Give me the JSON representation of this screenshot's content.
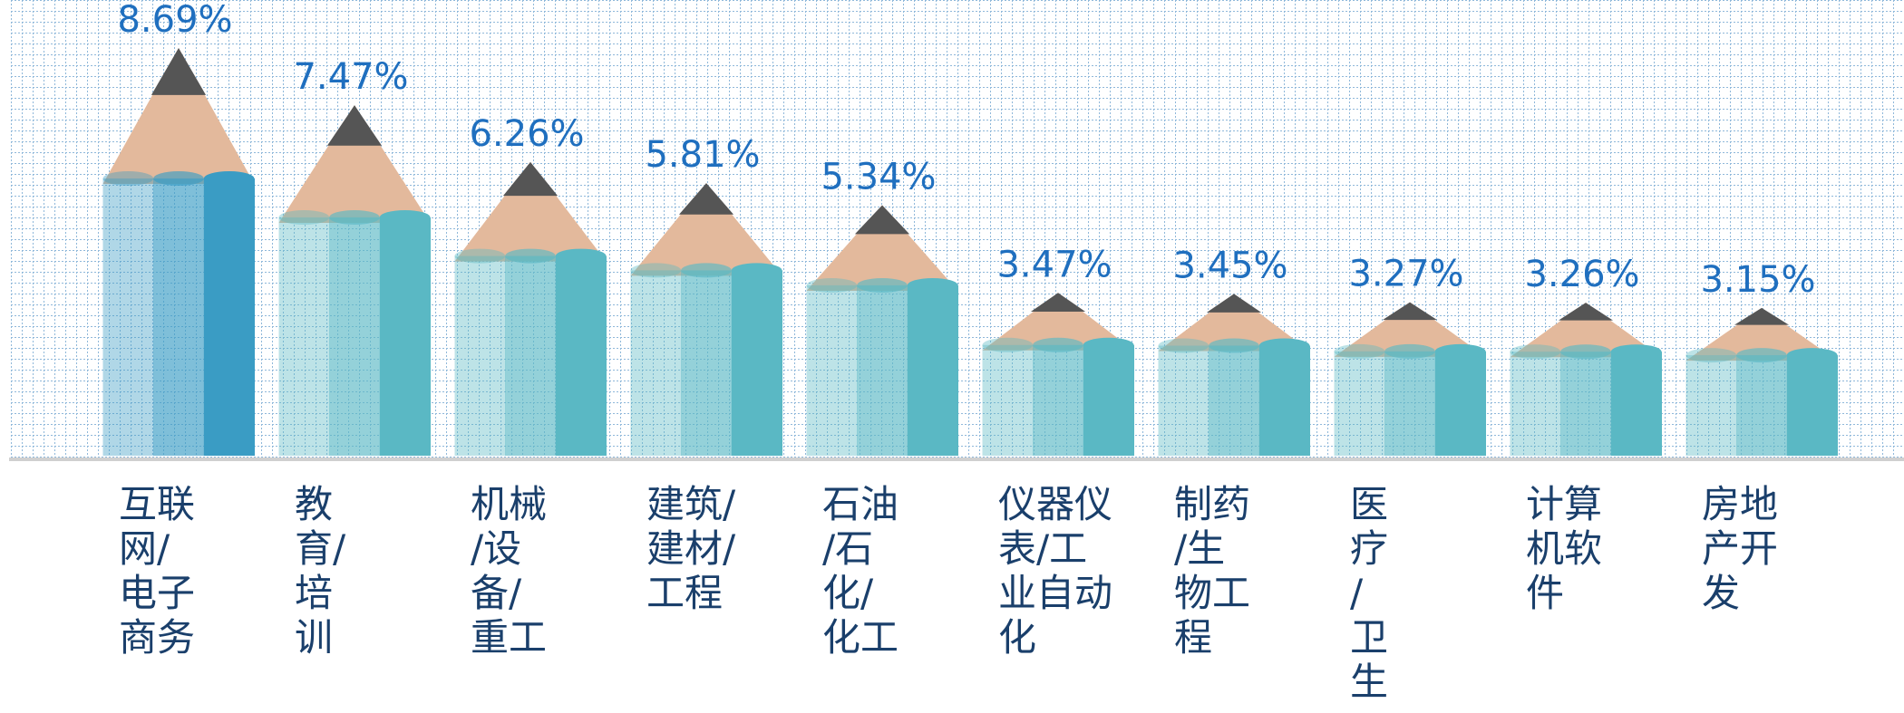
{
  "chart_data": {
    "type": "pencil-bar",
    "categories": [
      "互联\n网/\n电子\n商务",
      "教\n育/\n培\n训",
      "机械\n/设\n备/\n重工",
      "建筑/\n建材/\n工程",
      "石油\n/石\n化/\n化工",
      "仪器仪\n表/工\n业自动\n化",
      "制药\n/生\n物工\n程",
      "医\n疗\n/\n卫\n生",
      "计算\n机软\n件",
      "房地\n产开\n发"
    ],
    "values": [
      8.69,
      7.47,
      6.26,
      5.81,
      5.34,
      3.47,
      3.45,
      3.27,
      3.26,
      3.15
    ],
    "value_labels": [
      "8.69%",
      "7.47%",
      "6.26%",
      "5.81%",
      "5.34%",
      "3.47%",
      "3.45%",
      "3.27%",
      "3.26%",
      "3.15%"
    ],
    "colors": [
      "#3a9cc4",
      "#5ab8c4",
      "#5ab8c4",
      "#5ab8c4",
      "#5ab8c4",
      "#5ab8c4",
      "#5ab8c4",
      "#5ab8c4",
      "#5ab8c4",
      "#5ab8c4"
    ]
  }
}
